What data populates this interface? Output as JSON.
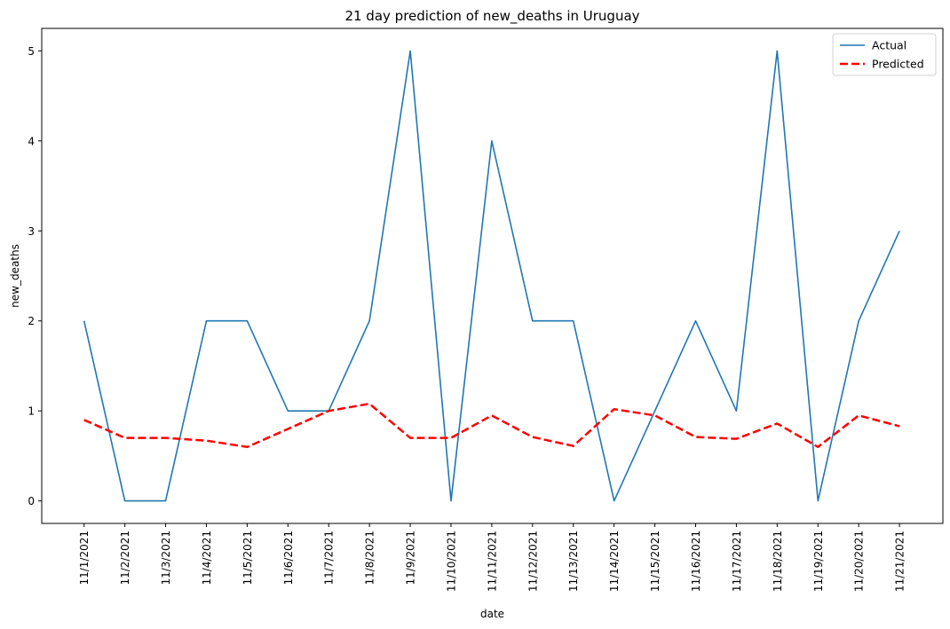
{
  "chart_data": {
    "type": "line",
    "title": "21 day prediction of new_deaths in Uruguay",
    "xlabel": "date",
    "ylabel": "new_deaths",
    "categories": [
      "11/1/2021",
      "11/2/2021",
      "11/3/2021",
      "11/4/2021",
      "11/5/2021",
      "11/6/2021",
      "11/7/2021",
      "11/8/2021",
      "11/9/2021",
      "11/10/2021",
      "11/11/2021",
      "11/12/2021",
      "11/13/2021",
      "11/14/2021",
      "11/15/2021",
      "11/16/2021",
      "11/17/2021",
      "11/18/2021",
      "11/19/2021",
      "11/20/2021",
      "11/21/2021"
    ],
    "ylim": [
      -0.25,
      5.25
    ],
    "yticks": [
      0,
      1,
      2,
      3,
      4,
      5
    ],
    "grid": false,
    "legend_position": "top-right",
    "series": [
      {
        "name": "Actual",
        "color": "#1f77b4",
        "style": "solid",
        "values": [
          2,
          0,
          0,
          2,
          2,
          1,
          1,
          2,
          5,
          0,
          4,
          2,
          2,
          0,
          1,
          2,
          1,
          5,
          0,
          2,
          3
        ]
      },
      {
        "name": "Predicted",
        "color": "#ff0000",
        "style": "dashed",
        "values": [
          0.9,
          0.7,
          0.7,
          0.67,
          0.6,
          0.8,
          1.0,
          1.08,
          0.7,
          0.7,
          0.95,
          0.71,
          0.61,
          1.02,
          0.95,
          0.71,
          0.69,
          0.86,
          0.6,
          0.95,
          0.83
        ]
      }
    ]
  }
}
